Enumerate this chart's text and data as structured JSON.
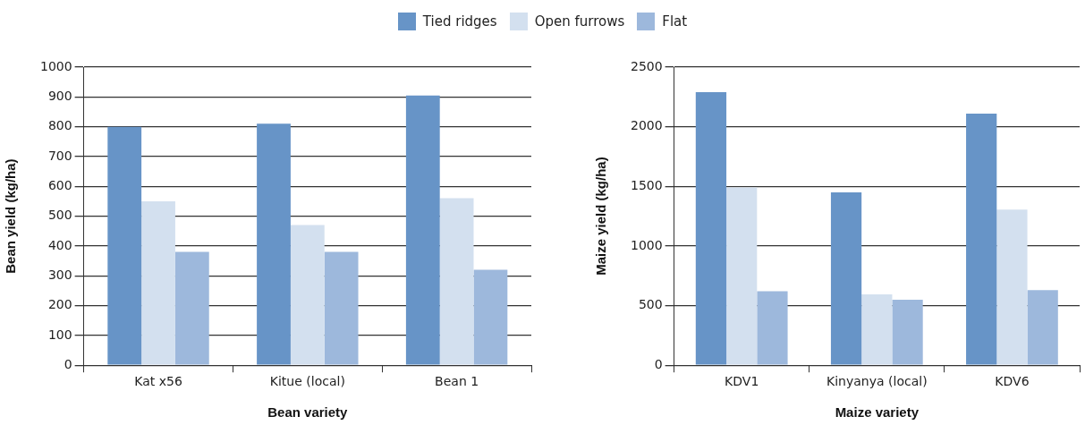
{
  "chart_data": [
    {
      "type": "bar",
      "xlabel": "Bean variety",
      "ylabel": "Bean yield (kg/ha)",
      "categories": [
        "Kat x56",
        "Kitue (local)",
        "Bean 1"
      ],
      "series": [
        {
          "name": "Tied ridges",
          "color": "#6794c7",
          "values": [
            800,
            810,
            905
          ]
        },
        {
          "name": "Open furrows",
          "color": "#d3e0ef",
          "values": [
            550,
            470,
            560
          ]
        },
        {
          "name": "Flat",
          "color": "#9db8dc",
          "values": [
            380,
            380,
            320
          ]
        }
      ],
      "ylim": [
        0,
        1000
      ],
      "yticks": [
        0,
        100,
        200,
        300,
        400,
        500,
        600,
        700,
        800,
        900,
        1000
      ],
      "grid": "y",
      "legend": "top"
    },
    {
      "type": "bar",
      "xlabel": "Maize variety",
      "ylabel": "Maize yield (kg/ha)",
      "categories": [
        "KDV1",
        "Kinyanya (local)",
        "KDV6"
      ],
      "series": [
        {
          "color": "#6794c7",
          "values": [
            2290,
            1450,
            2110
          ]
        },
        {
          "color": "#d3e0ef",
          "values": [
            1490,
            595,
            1305
          ]
        },
        {
          "color": "#9db8dc",
          "values": [
            620,
            550,
            630
          ]
        }
      ],
      "ylim": [
        0,
        2500
      ],
      "yticks": [
        0,
        500,
        1000,
        1500,
        2000,
        2500
      ],
      "grid": "y",
      "legend": false
    }
  ]
}
